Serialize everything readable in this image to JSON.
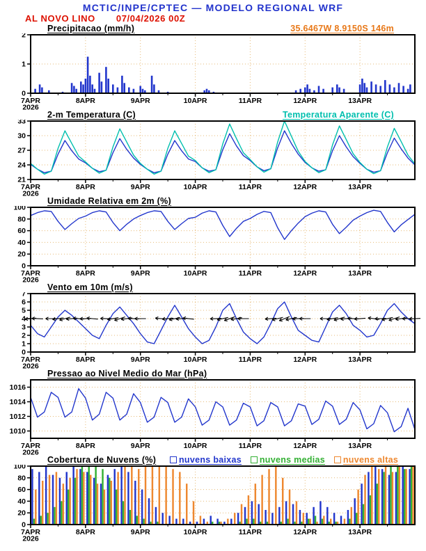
{
  "header": {
    "title": "MCTIC/INPE/CPTEC — MODELO REGIONAL WRF",
    "station_line": "AL NOVO LINO",
    "run_label": "07/04/2026 00Z",
    "location_label": "35.6467W 8.9150S 146m"
  },
  "x_axis": {
    "hours_span": 168,
    "day_ticks": [
      0,
      24,
      48,
      72,
      96,
      120,
      144
    ],
    "day_labels": [
      "7APR",
      "8APR",
      "9APR",
      "10APR",
      "11APR",
      "12APR",
      "13APR"
    ],
    "year_label": "2026"
  },
  "colors": {
    "header_blue": "#2233cc",
    "header_red": "#dd1100",
    "accent_orange": "#e87818",
    "line_blue": "#2236cc",
    "aparente_cyan": "#00bfae",
    "cloud_green": "#33b033",
    "cloud_orange": "#ee8830",
    "grid": "#d9942a"
  },
  "chart_data": [
    {
      "name": "precipitacao",
      "type": "bar",
      "title": "Precipitacao (mm/h)",
      "ylim": [
        0,
        2
      ],
      "yticks": [
        0,
        1,
        2
      ],
      "series": [
        {
          "name": "precipitacao",
          "color": "#2236cc",
          "points": [
            [
              2,
              0.15
            ],
            [
              4,
              0.3
            ],
            [
              5,
              0.2
            ],
            [
              8,
              0.1
            ],
            [
              14,
              0.05
            ],
            [
              18,
              0.35
            ],
            [
              19,
              0.25
            ],
            [
              20,
              0.15
            ],
            [
              22,
              0.4
            ],
            [
              23,
              0.3
            ],
            [
              24,
              0.5
            ],
            [
              25,
              1.25
            ],
            [
              26,
              0.6
            ],
            [
              27,
              0.3
            ],
            [
              28,
              0.15
            ],
            [
              30,
              0.7
            ],
            [
              31,
              0.4
            ],
            [
              33,
              0.9
            ],
            [
              34,
              0.5
            ],
            [
              36,
              0.3
            ],
            [
              38,
              0.2
            ],
            [
              40,
              0.6
            ],
            [
              41,
              0.35
            ],
            [
              43,
              0.2
            ],
            [
              45,
              0.15
            ],
            [
              48,
              0.25
            ],
            [
              49,
              0.15
            ],
            [
              50,
              0.1
            ],
            [
              53,
              0.6
            ],
            [
              54,
              0.3
            ],
            [
              56,
              0.1
            ],
            [
              60,
              0.05
            ],
            [
              76,
              0.1
            ],
            [
              77,
              0.15
            ],
            [
              78,
              0.1
            ],
            [
              80,
              0.05
            ],
            [
              116,
              0.1
            ],
            [
              118,
              0.15
            ],
            [
              120,
              0.2
            ],
            [
              121,
              0.3
            ],
            [
              122,
              0.15
            ],
            [
              124,
              0.1
            ],
            [
              126,
              0.25
            ],
            [
              128,
              0.15
            ],
            [
              132,
              0.2
            ],
            [
              134,
              0.3
            ],
            [
              135,
              0.2
            ],
            [
              137,
              0.15
            ],
            [
              144,
              0.3
            ],
            [
              145,
              0.5
            ],
            [
              146,
              0.35
            ],
            [
              147,
              0.2
            ],
            [
              149,
              0.4
            ],
            [
              151,
              0.3
            ],
            [
              153,
              0.25
            ],
            [
              155,
              0.45
            ],
            [
              157,
              0.3
            ],
            [
              159,
              0.2
            ],
            [
              161,
              0.35
            ],
            [
              163,
              0.25
            ],
            [
              165,
              0.15
            ],
            [
              166,
              0.3
            ]
          ]
        }
      ]
    },
    {
      "name": "temperatura",
      "type": "line",
      "title": "2-m Temperatura (C)",
      "legend_right": "Temperatura Aparente (C)",
      "ylim": [
        21,
        33
      ],
      "yticks": [
        21,
        24,
        27,
        30,
        33
      ],
      "x_step_hours": 3,
      "series": [
        {
          "name": "2-m Temperatura",
          "color": "#2236cc",
          "values": [
            24.1,
            23.1,
            22.4,
            22.7,
            26.2,
            29,
            26.9,
            25.2,
            24.4,
            23.3,
            22.6,
            22.9,
            26.5,
            29.4,
            27.2,
            25.4,
            24.1,
            23.1,
            22.4,
            22.7,
            26.2,
            29,
            26.9,
            25.2,
            24.7,
            23.4,
            22.7,
            23,
            27.1,
            30.4,
            27.9,
            25.9,
            24.9,
            23.6,
            22.8,
            23.2,
            27.5,
            31,
            28.4,
            26.2,
            24.5,
            23.4,
            22.7,
            23,
            26.9,
            30,
            27.7,
            25.7,
            24.3,
            23.1,
            22.5,
            22.8,
            26.5,
            29.5,
            27.3,
            25.4,
            24
          ]
        },
        {
          "name": "Temperatura Aparente",
          "color": "#00bfae",
          "values": [
            24.3,
            23.1,
            22.1,
            22.7,
            27.4,
            31,
            28.4,
            25.8,
            24.6,
            23.3,
            22.3,
            22.9,
            27.7,
            31.4,
            28.7,
            26,
            24.3,
            23.1,
            22.1,
            22.7,
            27.4,
            31,
            28.4,
            25.8,
            24.9,
            23.4,
            22.4,
            23,
            28.3,
            32.4,
            29.4,
            26.5,
            25.1,
            23.6,
            22.5,
            23.2,
            28.7,
            33,
            29.9,
            26.8,
            24.7,
            23.4,
            22.4,
            23,
            28.1,
            32,
            29.2,
            26.3,
            24.5,
            23.1,
            22.2,
            22.8,
            27.7,
            31.5,
            28.8,
            26,
            24.2
          ]
        }
      ]
    },
    {
      "name": "umidade",
      "type": "line",
      "title": "Umidade Relativa em 2m (%)",
      "ylim": [
        0,
        100
      ],
      "yticks": [
        0,
        20,
        40,
        60,
        80,
        100
      ],
      "x_step_hours": 3,
      "series": [
        {
          "name": "umidade relativa",
          "color": "#2236cc",
          "values": [
            86,
            91,
            94,
            93,
            76,
            62,
            72,
            81,
            85,
            91,
            94,
            92,
            74,
            60,
            71,
            80,
            86,
            91,
            94,
            93,
            76,
            62,
            72,
            81,
            83,
            90,
            94,
            92,
            69,
            50,
            64,
            76,
            81,
            88,
            93,
            91,
            65,
            45,
            60,
            73,
            84,
            90,
            94,
            92,
            71,
            55,
            66,
            78,
            85,
            91,
            95,
            93,
            74,
            58,
            70,
            79,
            88
          ]
        }
      ]
    },
    {
      "name": "vento",
      "type": "line-barbs",
      "title": "Vento em 10m (m/s)",
      "ylim": [
        0,
        7
      ],
      "yticks": [
        0,
        1,
        2,
        3,
        4,
        5,
        6,
        7
      ],
      "x_step_hours": 3,
      "series": [
        {
          "name": "velocidade do vento",
          "color": "#2236cc",
          "values": [
            3.2,
            2.2,
            1.8,
            3,
            4.2,
            5,
            4.4,
            3.6,
            2.8,
            2,
            1.6,
            3.2,
            4.6,
            5.4,
            4.4,
            3.4,
            2.2,
            1.2,
            1,
            2.6,
            4.2,
            5.6,
            4.2,
            2.8,
            1.8,
            1,
            1.4,
            3,
            5,
            5.8,
            4,
            2.4,
            1.6,
            1,
            1.8,
            3.4,
            5.2,
            6,
            4.2,
            2.6,
            2,
            1.4,
            1.2,
            3,
            4.8,
            5.6,
            4.6,
            3.2,
            2.6,
            1.8,
            2,
            3.4,
            5,
            5.8,
            4.8,
            4,
            3.4
          ]
        }
      ],
      "barbs": {
        "y_value": 4,
        "min_speed": 2,
        "angles_deg": [
          185,
          178,
          172,
          180,
          188,
          195,
          185,
          176,
          182,
          175,
          168,
          178,
          190,
          198,
          188,
          178,
          180,
          172,
          165,
          175,
          185,
          192,
          184,
          174,
          178,
          170,
          174,
          182,
          192,
          200,
          190,
          180,
          176,
          168,
          172,
          184,
          194,
          202,
          192,
          182,
          180,
          174,
          170,
          180,
          190,
          196,
          186,
          178,
          184,
          176,
          172,
          182,
          192,
          198,
          188,
          180,
          182
        ]
      }
    },
    {
      "name": "pressao",
      "type": "line",
      "title": "Pressao ao Nivel Medio do Mar (hPa)",
      "ylim": [
        1009,
        1017
      ],
      "yticks": [
        1010,
        1012,
        1014,
        1016
      ],
      "x_step_hours": 3,
      "series": [
        {
          "name": "pressao ao nivel do mar",
          "color": "#2236cc",
          "values": [
            1014.6,
            1011.9,
            1012.6,
            1015.3,
            1014.6,
            1011.9,
            1012.6,
            1015.8,
            1014.5,
            1011.5,
            1012.3,
            1015.3,
            1014.5,
            1011.5,
            1012.3,
            1015.1,
            1013.9,
            1011.2,
            1011.9,
            1014.6,
            1013.9,
            1011.2,
            1011.9,
            1014.4,
            1013.3,
            1010.8,
            1011.5,
            1014,
            1013.3,
            1010.8,
            1011.5,
            1013.8,
            1013.3,
            1010.7,
            1011.4,
            1013.9,
            1013.3,
            1010.7,
            1011.4,
            1013.7,
            1013.4,
            1010.9,
            1011.6,
            1014.1,
            1013.4,
            1010.9,
            1011.6,
            1013.9,
            1012.9,
            1010.3,
            1011,
            1013.5,
            1012.5,
            1009.9,
            1010.6,
            1013.1,
            1010.2
          ]
        }
      ]
    },
    {
      "name": "nuvens",
      "type": "grouped-bar",
      "title": "Cobertura de Nuvens (%)",
      "ylim": [
        0,
        100
      ],
      "yticks": [
        0,
        20,
        40,
        60,
        80,
        100
      ],
      "x_step_hours": 3,
      "legend": [
        {
          "label": "nuvens baixas",
          "color": "#2236cc"
        },
        {
          "label": "nuvens medias",
          "color": "#33b033"
        },
        {
          "label": "nuvens altas",
          "color": "#ee8830"
        }
      ],
      "series": [
        {
          "name": "nuvens baixas",
          "color": "#2236cc",
          "values": [
            95,
            90,
            100,
            85,
            80,
            90,
            100,
            95,
            90,
            80,
            70,
            85,
            95,
            100,
            90,
            75,
            60,
            45,
            30,
            20,
            15,
            10,
            10,
            5,
            5,
            10,
            15,
            10,
            5,
            10,
            20,
            30,
            40,
            35,
            25,
            20,
            30,
            40,
            35,
            25,
            20,
            30,
            40,
            30,
            20,
            15,
            25,
            45,
            70,
            90,
            100,
            95,
            85,
            90,
            100,
            95
          ]
        },
        {
          "name": "nuvens medias",
          "color": "#33b033",
          "values": [
            10,
            15,
            20,
            30,
            40,
            60,
            80,
            100,
            100,
            100,
            95,
            80,
            60,
            40,
            25,
            15,
            10,
            5,
            5,
            0,
            0,
            0,
            0,
            0,
            0,
            0,
            5,
            5,
            0,
            0,
            5,
            10,
            10,
            5,
            5,
            0,
            5,
            10,
            5,
            5,
            10,
            15,
            10,
            5,
            5,
            0,
            10,
            20,
            35,
            50,
            70,
            90,
            100,
            100,
            95,
            100
          ]
        },
        {
          "name": "nuvens altas",
          "color": "#ee8830",
          "values": [
            60,
            75,
            85,
            90,
            70,
            80,
            95,
            90,
            85,
            70,
            60,
            75,
            90,
            100,
            100,
            95,
            100,
            100,
            100,
            100,
            95,
            90,
            70,
            40,
            15,
            5,
            0,
            5,
            10,
            20,
            35,
            50,
            70,
            85,
            95,
            100,
            80,
            60,
            40,
            20,
            10,
            5,
            15,
            10,
            5,
            10,
            30,
            60,
            85,
            100,
            95,
            100,
            90,
            100,
            95,
            100
          ]
        }
      ]
    }
  ]
}
